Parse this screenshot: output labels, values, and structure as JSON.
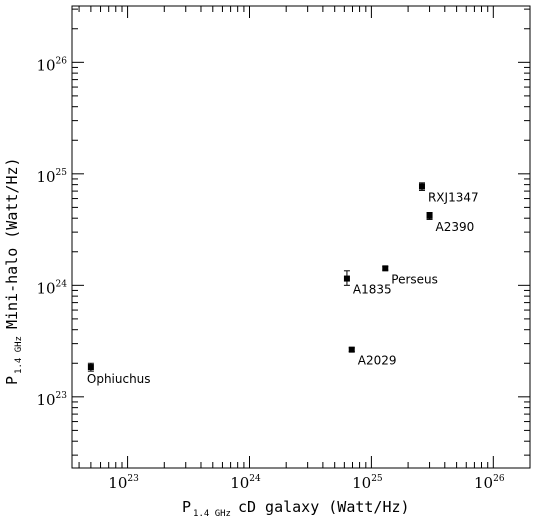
{
  "chart_data": {
    "type": "scatter",
    "title": "",
    "xlabel": {
      "prefix": "P",
      "subscript": "1.4 GHz",
      "text": "cD galaxy (Watt/Hz)"
    },
    "ylabel": {
      "prefix": "P",
      "subscript": "1.4 GHz",
      "text": "Mini-halo (Watt/Hz)"
    },
    "xscale": "log",
    "yscale": "log",
    "xlim": [
      3.5e+22,
      2e+26
    ],
    "ylim": [
      2.3e+22,
      3.2e+26
    ],
    "xticks": [
      {
        "value": 1e+23,
        "base": "10",
        "exp": "23"
      },
      {
        "value": 1e+24,
        "base": "10",
        "exp": "24"
      },
      {
        "value": 1e+25,
        "base": "10",
        "exp": "25"
      },
      {
        "value": 1e+26,
        "base": "10",
        "exp": "26"
      }
    ],
    "yticks": [
      {
        "value": 1e+23,
        "base": "10",
        "exp": "23"
      },
      {
        "value": 1e+24,
        "base": "10",
        "exp": "24"
      },
      {
        "value": 1e+25,
        "base": "10",
        "exp": "25"
      },
      {
        "value": 1e+26,
        "base": "10",
        "exp": "26"
      }
    ],
    "grid": false,
    "points": [
      {
        "label": "Ophiuchus",
        "x": 5e+22,
        "y": 1.85e+23,
        "yerr_lo": 1.5e+22,
        "yerr_hi": 1.5e+22,
        "label_pos": "below"
      },
      {
        "label": "A2029",
        "x": 6.9e+24,
        "y": 2.65e+23,
        "yerr_lo": 1e+22,
        "yerr_hi": 1e+22,
        "label_pos": "below-right"
      },
      {
        "label": "A1835",
        "x": 6.3e+24,
        "y": 1.15e+24,
        "yerr_lo": 1.5e+23,
        "yerr_hi": 2e+23,
        "label_pos": "below-right"
      },
      {
        "label": "Perseus",
        "x": 1.3e+25,
        "y": 1.42e+24,
        "yerr_lo": 5e+22,
        "yerr_hi": 5e+22,
        "label_pos": "below-right"
      },
      {
        "label": "RXJ1347",
        "x": 2.6e+25,
        "y": 7.7e+24,
        "yerr_lo": 6e+23,
        "yerr_hi": 6e+23,
        "label_pos": "below-right"
      },
      {
        "label": "A2390",
        "x": 3e+25,
        "y": 4.2e+24,
        "yerr_lo": 3e+23,
        "yerr_hi": 3e+23,
        "label_pos": "below-right"
      }
    ]
  }
}
